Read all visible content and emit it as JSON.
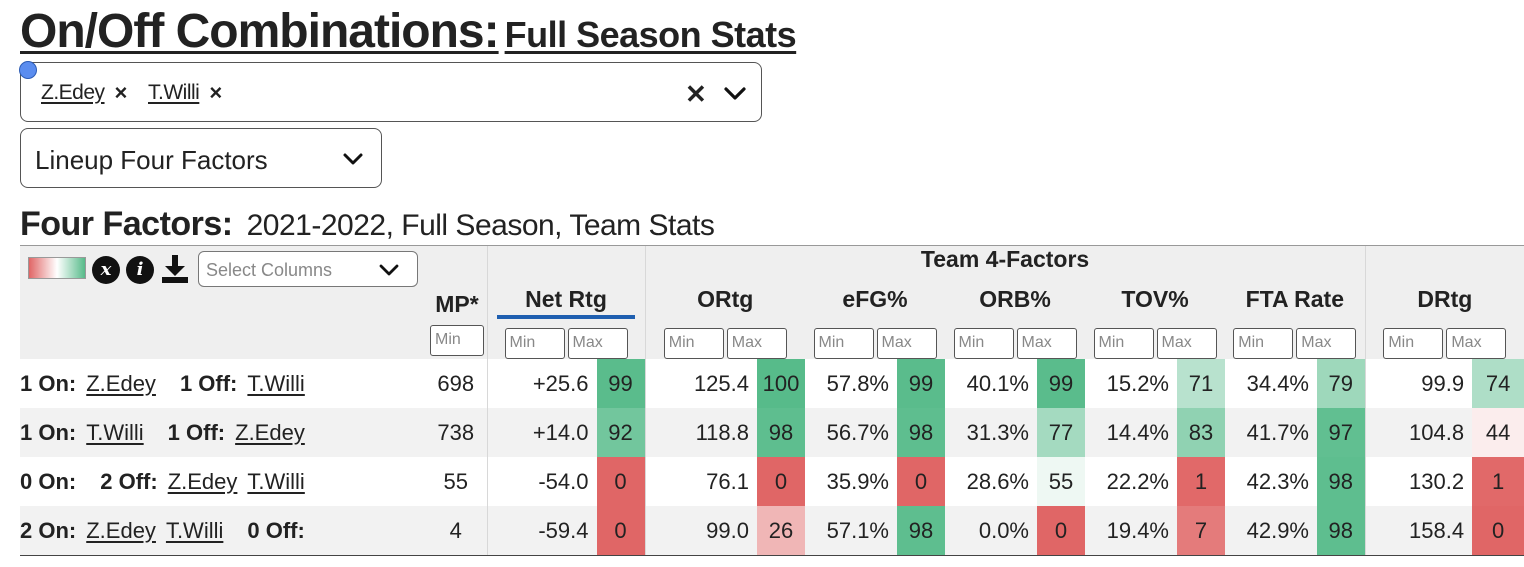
{
  "title": {
    "main": "On/Off Combinations:",
    "sub": "Full Season Stats"
  },
  "player_select": {
    "chips": [
      "Z.Edey",
      "T.Willi"
    ],
    "chip_remove_glyph": "×",
    "clear_glyph": "✕"
  },
  "view_select": {
    "value": "Lineup Four Factors"
  },
  "section": {
    "main": "Four Factors:",
    "sub": "2021-2022, Full Season, Team Stats"
  },
  "toolbar": {
    "stats_icon_glyph": "x",
    "info_icon_glyph": "i",
    "column_select_placeholder": "Select Columns"
  },
  "table": {
    "group_header": "Team 4-Factors",
    "columns": {
      "mp": "MP*",
      "net": "Net Rtg",
      "ortg": "ORtg",
      "efg": "eFG%",
      "orb": "ORB%",
      "tov": "TOV%",
      "fta": "FTA Rate",
      "drtg": "DRtg"
    },
    "filter_min": "Min",
    "filter_max": "Max",
    "rows": [
      {
        "on_label": "1 On:",
        "on_players": [
          "Z.Edey"
        ],
        "off_label": "1 Off:",
        "off_players": [
          "T.Willi"
        ],
        "mp": "698",
        "net": "+25.6",
        "net_pct": 99,
        "ortg": "125.4",
        "ortg_pct": 100,
        "efg": "57.8%",
        "efg_pct": 99,
        "orb": "40.1%",
        "orb_pct": 99,
        "tov": "15.2%",
        "tov_pct": 71,
        "fta": "34.4%",
        "fta_pct": 79,
        "drtg": "99.9",
        "drtg_pct": 74
      },
      {
        "on_label": "1 On:",
        "on_players": [
          "T.Willi"
        ],
        "off_label": "1 Off:",
        "off_players": [
          "Z.Edey"
        ],
        "mp": "738",
        "net": "+14.0",
        "net_pct": 92,
        "ortg": "118.8",
        "ortg_pct": 98,
        "efg": "56.7%",
        "efg_pct": 98,
        "orb": "31.3%",
        "orb_pct": 77,
        "tov": "14.4%",
        "tov_pct": 83,
        "fta": "41.7%",
        "fta_pct": 97,
        "drtg": "104.8",
        "drtg_pct": 44
      },
      {
        "on_label": "0 On:",
        "on_players": [],
        "off_label": "2 Off:",
        "off_players": [
          "Z.Edey",
          "T.Willi"
        ],
        "mp": "55",
        "net": "-54.0",
        "net_pct": 0,
        "ortg": "76.1",
        "ortg_pct": 0,
        "efg": "35.9%",
        "efg_pct": 0,
        "orb": "28.6%",
        "orb_pct": 55,
        "tov": "22.2%",
        "tov_pct": 1,
        "fta": "42.3%",
        "fta_pct": 98,
        "drtg": "130.2",
        "drtg_pct": 1
      },
      {
        "on_label": "2 On:",
        "on_players": [
          "Z.Edey",
          "T.Willi"
        ],
        "off_label": "0 Off:",
        "off_players": [],
        "mp": "4",
        "net": "-59.4",
        "net_pct": 0,
        "ortg": "99.0",
        "ortg_pct": 26,
        "efg": "57.1%",
        "efg_pct": 98,
        "orb": "0.0%",
        "orb_pct": 0,
        "tov": "19.4%",
        "tov_pct": 7,
        "fta": "42.9%",
        "fta_pct": 98,
        "drtg": "158.4",
        "drtg_pct": 0
      }
    ]
  },
  "colors": {
    "scale_low": "#e06666",
    "scale_mid": "#ffffff",
    "scale_high": "#57bb8a",
    "sort_underline": "#1f5fb0",
    "drag_dot": "#5b8def"
  },
  "icons": {
    "remove": "close-icon",
    "dropdown": "chevron-down-icon",
    "stats": "stats-icon",
    "info": "info-icon",
    "download": "download-icon"
  }
}
